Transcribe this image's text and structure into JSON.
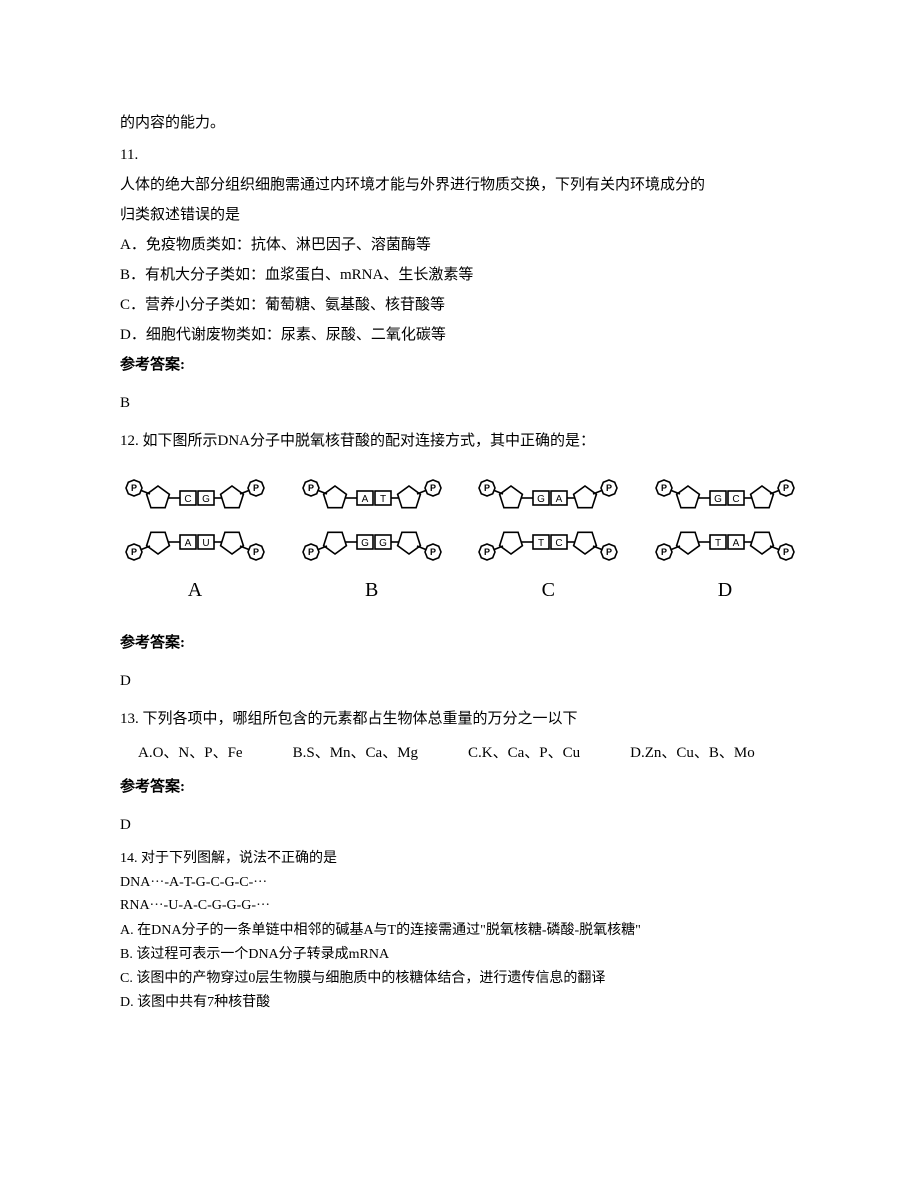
{
  "colors": {
    "text": "#000000",
    "bg": "#ffffff",
    "stroke": "#000000"
  },
  "fragment_top": "的内容的能力。",
  "q11": {
    "number": "11.",
    "stem_l1": "人体的绝大部分组织细胞需通过内环境才能与外界进行物质交换，下列有关内环境成分的",
    "stem_l2": "归类叙述错误的是",
    "optA": "A．免疫物质类如：抗体、淋巴因子、溶菌酶等",
    "optB": "B．有机大分子类如：血浆蛋白、mRNA、生长激素等",
    "optC": "C．营养小分子类如：葡萄糖、氨基酸、核苷酸等",
    "optD": "D．细胞代谢废物类如：尿素、尿酸、二氧化碳等",
    "answer_label": "参考答案:",
    "answer": "B"
  },
  "q12": {
    "header": "12. 如下图所示DNA分子中脱氧核苷酸的配对连接方式，其中正确的是：",
    "diagrams": {
      "A": {
        "label": "A",
        "top_bases": [
          "C",
          "G"
        ],
        "bottom_bases": [
          "A",
          "U"
        ]
      },
      "B": {
        "label": "B",
        "top_bases": [
          "A",
          "T"
        ],
        "bottom_bases": [
          "G",
          "G"
        ]
      },
      "C": {
        "label": "C",
        "top_bases": [
          "G",
          "A"
        ],
        "bottom_bases": [
          "T",
          "C"
        ]
      },
      "D": {
        "label": "D",
        "top_bases": [
          "G",
          "C"
        ],
        "bottom_bases": [
          "T",
          "A"
        ]
      },
      "svg": {
        "width": 150,
        "height": 92,
        "pentagon_size": 18,
        "phosphate_r": 9,
        "stroke": "#000000",
        "stroke_width": 1.6,
        "base_box_w": 16,
        "base_box_h": 14,
        "base_font": 10
      }
    },
    "answer_label": "参考答案:",
    "answer": "D"
  },
  "q13": {
    "header": "13. 下列各项中，哪组所包含的元素都占生物体总重量的万分之一以下",
    "optA": "A.O、N、P、Fe",
    "optB": "B.S、Mn、Ca、Mg",
    "optC": "C.K、Ca、P、Cu",
    "optD": "D.Zn、Cu、B、Mo",
    "answer_label": "参考答案:",
    "answer": "D"
  },
  "q14": {
    "header": "14. 对于下列图解，说法不正确的是",
    "seq_dna": "DNA···-A-T-G-C-G-C-···",
    "seq_rna": "RNA···-U-A-C-G-G-G-···",
    "optA": "A. 在DNA分子的一条单链中相邻的碱基A与T的连接需通过\"脱氧核糖-磷酸-脱氧核糖\"",
    "optB": "B. 该过程可表示一个DNA分子转录成mRNA",
    "optC": "C. 该图中的产物穿过0层生物膜与细胞质中的核糖体结合，进行遗传信息的翻译",
    "optD": "D. 该图中共有7种核苷酸"
  }
}
